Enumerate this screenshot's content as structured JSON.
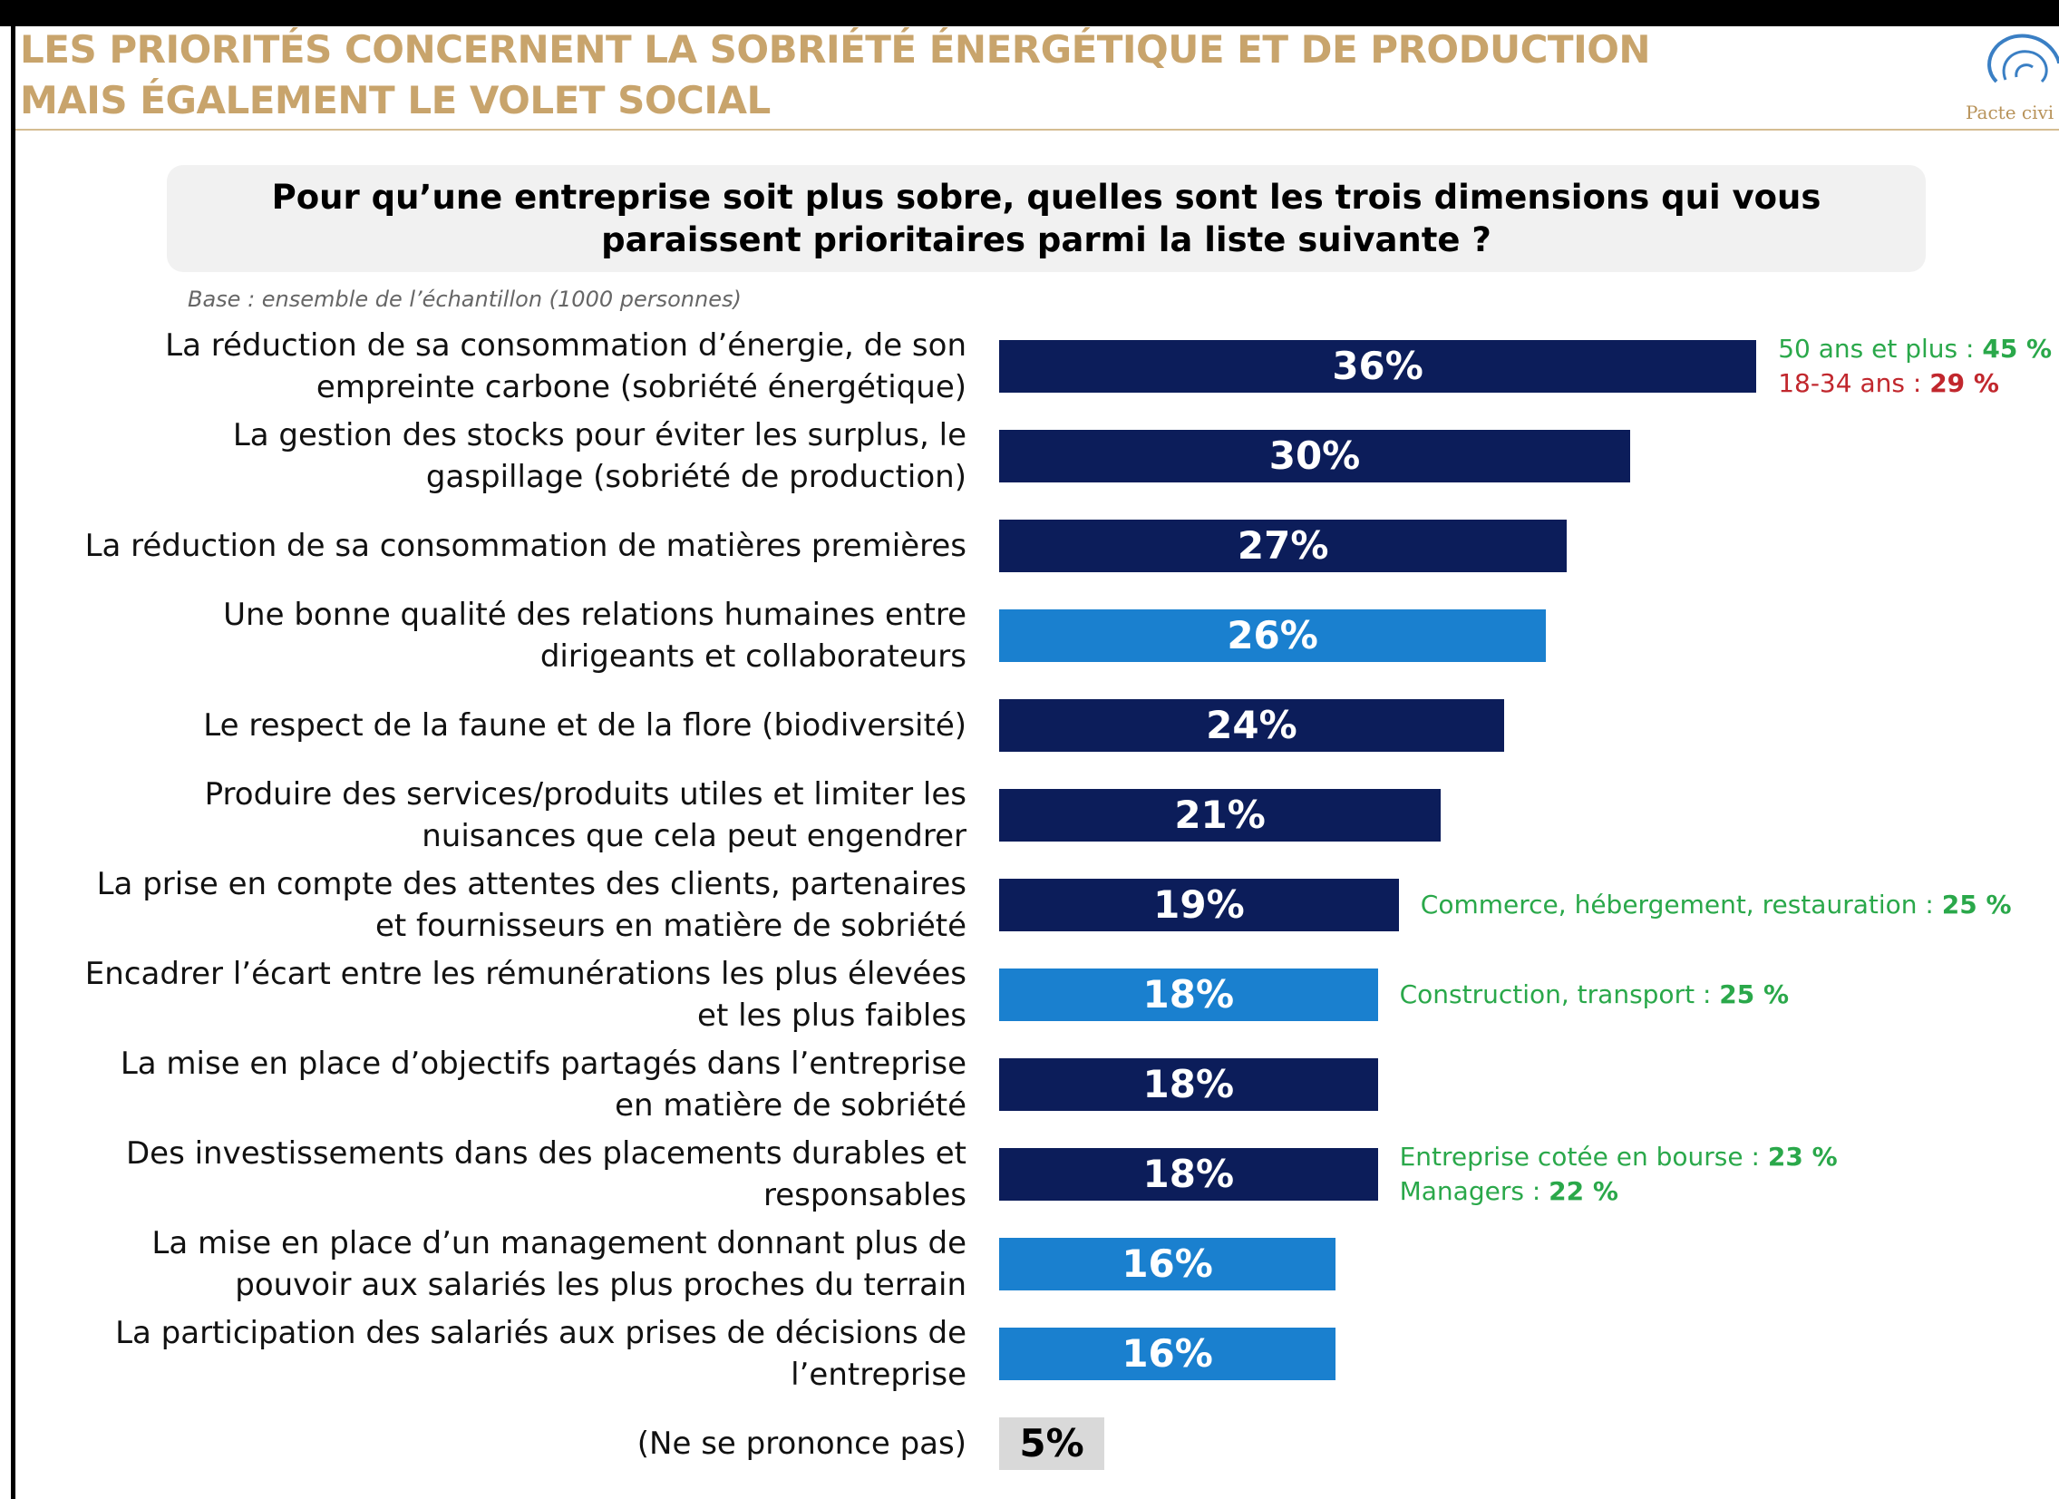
{
  "header": {
    "title_lines": [
      "LES PRIORITÉS CONCERNENT LA SOBRIÉTÉ ÉNERGÉTIQUE ET DE PRODUCTION",
      "MAIS ÉGALEMENT LE VOLET SOCIAL"
    ],
    "logo_text": "Pacte civi"
  },
  "chart_data": {
    "type": "bar",
    "title": "Pour qu’une entreprise soit plus sobre, quelles sont les trois dimensions qui vous paraissent prioritaires parmi la liste suivante ?",
    "subtitle": "Base : ensemble de l’échantillon (1000 personnes)",
    "categories": [
      "La réduction de sa consommation d’énergie, de son empreinte carbone (sobriété énergétique)",
      "La gestion des stocks pour éviter les surplus, le gaspillage (sobriété de production)",
      "La réduction de sa consommation de matières premières",
      "Une bonne qualité des relations humaines entre dirigeants et collaborateurs",
      "Le respect de la faune et de la flore (biodiversité)",
      "Produire des services/produits utiles et limiter les nuisances que cela peut engendrer",
      "La prise en compte des attentes des clients, partenaires et fournisseurs en matière de sobriété",
      "Encadrer l’écart entre les rémunérations les plus élevées et les plus faibles",
      "La mise en place d’objectifs partagés dans l’entreprise en matière de sobriété",
      "Des investissements dans des placements durables et responsables",
      "La mise en place d’un management donnant plus de pouvoir aux salariés les plus proches du terrain",
      "La participation des salariés aux prises de décisions de l’entreprise",
      "(Ne se prononce pas)"
    ],
    "values": [
      36,
      30,
      27,
      26,
      24,
      21,
      19,
      18,
      18,
      18,
      16,
      16,
      5
    ],
    "value_labels": [
      "36%",
      "30%",
      "27%",
      "26%",
      "24%",
      "21%",
      "19%",
      "18%",
      "18%",
      "18%",
      "16%",
      "16%",
      "5%"
    ],
    "colors": [
      "#0c1d5a",
      "#0c1d5a",
      "#0c1d5a",
      "#1a80cf",
      "#0c1d5a",
      "#0c1d5a",
      "#0c1d5a",
      "#1a80cf",
      "#0c1d5a",
      "#0c1d5a",
      "#1a80cf",
      "#1a80cf",
      "#d9d9d9"
    ],
    "notes": [
      [
        {
          "label": "50 ans et plus : ",
          "value": "45 %",
          "color": "#2aa84a"
        },
        {
          "label": "18-34 ans : ",
          "value": "29 %",
          "color": "#c1272d"
        }
      ],
      null,
      null,
      null,
      null,
      null,
      [
        {
          "label": "Commerce, hébergement, restauration : ",
          "value": "25 %",
          "color": "#2aa84a"
        }
      ],
      [
        {
          "label": "Construction, transport : ",
          "value": "25 %",
          "color": "#2aa84a"
        }
      ],
      null,
      [
        {
          "label": "Entreprise cotée en bourse : ",
          "value": "23 %",
          "color": "#2aa84a"
        },
        {
          "label": "Managers : ",
          "value": "22 %",
          "color": "#2aa84a"
        }
      ],
      null,
      null,
      null
    ]
  }
}
